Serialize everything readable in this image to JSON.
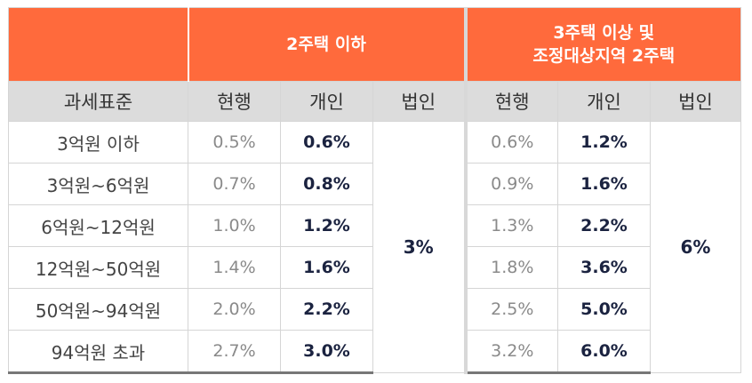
{
  "group_headers": [
    {
      "label": ""
    },
    {
      "label": "2주택 이하"
    },
    {
      "label_line1": "3주택 이상 및",
      "label_line2": "조정대상지역 2주택"
    }
  ],
  "columns": [
    "과세표준",
    "현행",
    "개인",
    "법인",
    "현행",
    "개인",
    "법인"
  ],
  "rows": [
    {
      "bracket": "3억원 이하",
      "a_cur": "0.5%",
      "a_ind": "0.6%",
      "b_cur": "0.6%",
      "b_ind": "1.2%"
    },
    {
      "bracket": "3억원~6억원",
      "a_cur": "0.7%",
      "a_ind": "0.8%",
      "b_cur": "0.9%",
      "b_ind": "1.6%"
    },
    {
      "bracket": "6억원~12억원",
      "a_cur": "1.0%",
      "a_ind": "1.2%",
      "b_cur": "1.3%",
      "b_ind": "2.2%"
    },
    {
      "bracket": "12억원~50억원",
      "a_cur": "1.4%",
      "a_ind": "1.6%",
      "b_cur": "1.8%",
      "b_ind": "3.6%"
    },
    {
      "bracket": "50억원~94억원",
      "a_cur": "2.0%",
      "a_ind": "2.2%",
      "b_cur": "2.5%",
      "b_ind": "5.0%"
    },
    {
      "bracket": "94억원 초과",
      "a_cur": "2.7%",
      "a_ind": "3.0%",
      "b_cur": "3.2%",
      "b_ind": "6.0%"
    }
  ],
  "corporate": {
    "a": "3%",
    "b": "6%"
  },
  "colors": {
    "header_orange": "#ff6a3c",
    "header_gray": "#dcdcdc",
    "bold_text": "#1b2340"
  }
}
